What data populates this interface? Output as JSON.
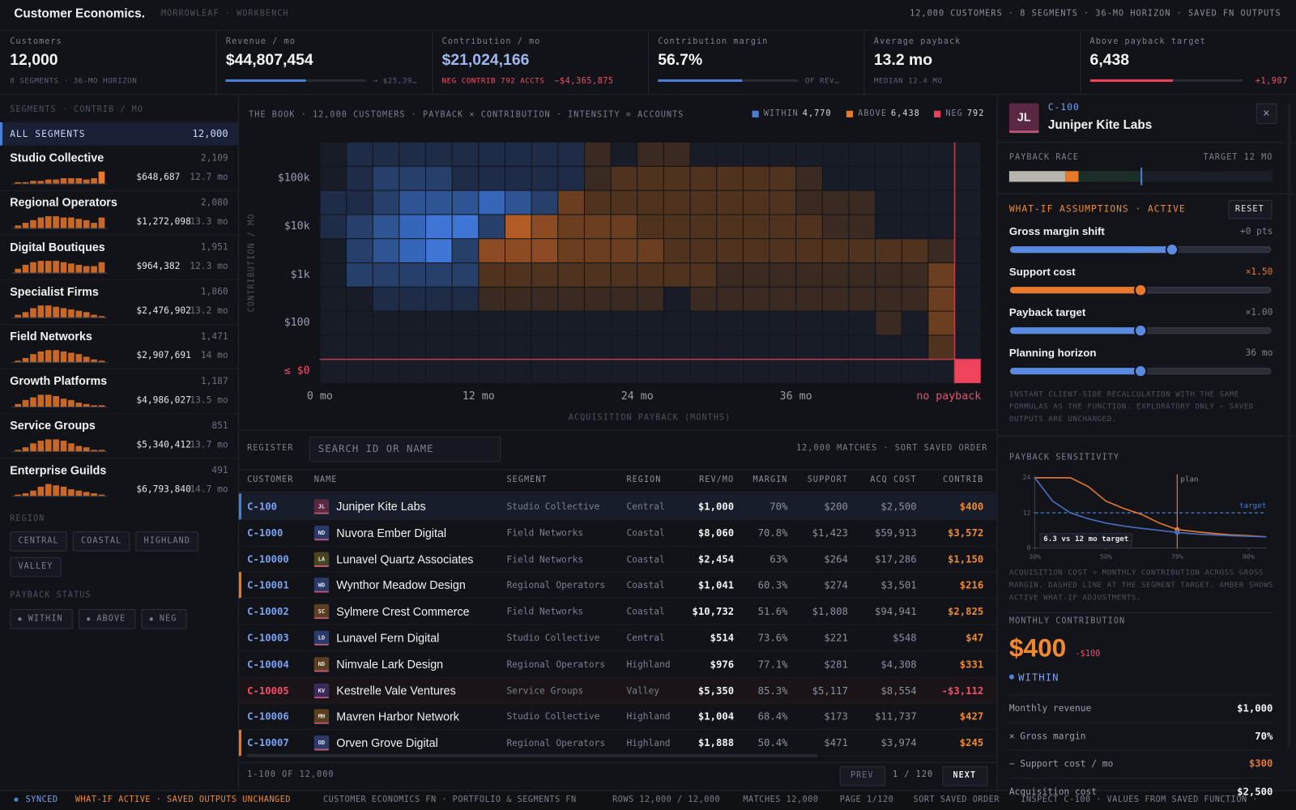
{
  "header": {
    "brand": "Customer Economics.",
    "org": "MORROWLEAF · WORKBENCH",
    "summary": "12,000 CUSTOMERS · 8 SEGMENTS · 36-MO HORIZON · SAVED FN OUTPUTS"
  },
  "kpis": [
    {
      "label": "Customers",
      "value": "12,000",
      "note": "8 SEGMENTS · 36-MO HORIZON"
    },
    {
      "label": "Revenue / mo",
      "value": "$44,807,454",
      "note": "→ $25,39…",
      "bar_color": "#4a7fd4"
    },
    {
      "label": "Contribution / mo",
      "value": "$21,024,166",
      "value_color": "#9db8f2",
      "note": "NEG CONTRIB 792 ACCTS",
      "note2": "−$4,365,875",
      "note_color": "#f0506a"
    },
    {
      "label": "Contribution margin",
      "value": "56.7%",
      "note": "OF REV…",
      "bar_color": "#4a7fd4"
    },
    {
      "label": "Average payback",
      "value": "13.2 mo",
      "note": "MEDIAN 12.4 MO"
    },
    {
      "label": "Above payback target",
      "value": "6,438",
      "note": "+1,907",
      "note_color": "#f0506a",
      "bar_color": "#f0405a"
    }
  ],
  "sidebar": {
    "title": "SEGMENTS · CONTRIB / MO",
    "all": {
      "label": "ALL SEGMENTS",
      "count": "12,000"
    },
    "spark_color": "#e8782a",
    "segments": [
      {
        "name": "Studio Collective",
        "count": "2,109",
        "contrib": "$648,687",
        "payback": "12.7 mo",
        "spark": [
          1,
          1,
          2,
          2,
          3,
          3,
          4,
          4,
          4,
          3,
          4,
          9
        ]
      },
      {
        "name": "Regional Operators",
        "count": "2,080",
        "contrib": "$1,272,098",
        "payback": "13.3 mo",
        "spark": [
          2,
          4,
          6,
          8,
          9,
          9,
          8,
          8,
          7,
          6,
          4,
          8
        ]
      },
      {
        "name": "Digital Boutiques",
        "count": "1,951",
        "contrib": "$964,382",
        "payback": "12.3 mo",
        "spark": [
          3,
          6,
          8,
          9,
          9,
          9,
          8,
          7,
          6,
          5,
          5,
          8
        ]
      },
      {
        "name": "Specialist Firms",
        "count": "1,860",
        "contrib": "$2,476,902",
        "payback": "13.2 mo",
        "spark": [
          2,
          4,
          7,
          9,
          9,
          8,
          7,
          6,
          5,
          4,
          2,
          1
        ]
      },
      {
        "name": "Field Networks",
        "count": "1,471",
        "contrib": "$2,907,691",
        "payback": "14 mo",
        "spark": [
          1,
          3,
          6,
          8,
          9,
          9,
          8,
          7,
          6,
          4,
          2,
          1
        ]
      },
      {
        "name": "Growth Platforms",
        "count": "1,187",
        "contrib": "$4,986,027",
        "payback": "13.5 mo",
        "spark": [
          2,
          5,
          7,
          9,
          9,
          8,
          6,
          5,
          3,
          2,
          1,
          1
        ]
      },
      {
        "name": "Service Groups",
        "count": "851",
        "contrib": "$5,340,412",
        "payback": "13.7 mo",
        "spark": [
          1,
          3,
          6,
          8,
          9,
          9,
          8,
          6,
          4,
          3,
          1,
          1
        ]
      },
      {
        "name": "Enterprise Guilds",
        "count": "491",
        "contrib": "$6,793,840",
        "payback": "14.7 mo",
        "spark": [
          1,
          2,
          4,
          7,
          9,
          8,
          7,
          5,
          4,
          3,
          2,
          1
        ]
      }
    ],
    "region_title": "REGION",
    "regions": [
      "CENTRAL",
      "COASTAL",
      "HIGHLAND",
      "VALLEY"
    ],
    "status_title": "PAYBACK STATUS",
    "statuses": [
      "WITHIN",
      "ABOVE",
      "NEG"
    ]
  },
  "heatmap": {
    "title": "THE BOOK · 12,000 CUSTOMERS · PAYBACK × CONTRIBUTION · INTENSITY = ACCOUNTS",
    "legend": [
      {
        "name": "WITHIN",
        "count": "4,770",
        "color": "#4a7fd4"
      },
      {
        "name": "ABOVE",
        "count": "6,438",
        "color": "#e8782a"
      },
      {
        "name": "NEG",
        "count": "792",
        "color": "#f0405a"
      }
    ],
    "colors": {
      "within": [
        "#1f2c47",
        "#26406b",
        "#2e5494",
        "#3666b8",
        "#3f76d6"
      ],
      "above": [
        "#3a2a22",
        "#50331f",
        "#6c3e20",
        "#8c4b22",
        "#b45c26"
      ],
      "neg": "#f0445c",
      "empty": "#171c27"
    },
    "rows": [
      ".aaaaaaaaaA.AA...........",
      ".abbbaaaaaABBBBBBBA......",
      "aabcccdcbCBBBBBBBBAAA....",
      "abcdeebEDCCCBBBBBBBAA....",
      ".bcdebDDDCCCCBBBBBBBBBBA.",
      ".bbbbbBBBBBBBBBAAAAAAAAC.",
      "..aaaaAAAAAAA.AAAAAAAAAC.",
      ".....................A.C.",
      ".......................B.",
      "........................N"
    ],
    "y_labels": [
      "$100k",
      "$10k",
      "$1k",
      "$100",
      "≤ $0"
    ],
    "x_labels": [
      "0 mo",
      "12 mo",
      "24 mo",
      "36 mo",
      "no payback"
    ],
    "y_axis_label": "CONTRIBUTION / MO",
    "x_axis_label": "ACQUISITION PAYBACK (MONTHS)"
  },
  "register": {
    "label": "REGISTER",
    "search_placeholder": "SEARCH ID OR NAME",
    "matches": "12,000 MATCHES · SORT SAVED ORDER",
    "columns": [
      "CUSTOMER",
      "NAME",
      "SEGMENT",
      "REGION",
      "REV/MO",
      "MARGIN",
      "SUPPORT",
      "ACQ COST",
      "CONTRIB"
    ],
    "rows": [
      {
        "id": "C-100",
        "initials": "JL",
        "avatar_color": "#5a2840",
        "name": "Juniper Kite Labs",
        "segment": "Studio Collective",
        "region": "Central",
        "rev": "$1,000",
        "margin": "70%",
        "support": "$200",
        "acq": "$2,500",
        "contrib": "$400",
        "selected": true
      },
      {
        "id": "C-1000",
        "initials": "ND",
        "avatar_color": "#2a3a6a",
        "name": "Nuvora Ember Digital",
        "segment": "Field Networks",
        "region": "Coastal",
        "rev": "$8,060",
        "margin": "70.8%",
        "support": "$1,423",
        "acq": "$59,913",
        "contrib": "$3,572"
      },
      {
        "id": "C-10000",
        "initials": "LA",
        "avatar_color": "#4a4420",
        "name": "Lunavel Quartz Associates",
        "segment": "Field Networks",
        "region": "Coastal",
        "rev": "$2,454",
        "margin": "63%",
        "support": "$264",
        "acq": "$17,286",
        "contrib": "$1,150"
      },
      {
        "id": "C-10001",
        "initials": "WD",
        "avatar_color": "#2a3a6a",
        "name": "Wynthor Meadow Design",
        "segment": "Regional Operators",
        "region": "Coastal",
        "rev": "$1,041",
        "margin": "60.3%",
        "support": "$274",
        "acq": "$3,501",
        "contrib": "$216",
        "accent": "#e8782a"
      },
      {
        "id": "C-10002",
        "initials": "SC",
        "avatar_color": "#5a4020",
        "name": "Sylmere Crest Commerce",
        "segment": "Field Networks",
        "region": "Coastal",
        "rev": "$10,732",
        "margin": "51.6%",
        "support": "$1,808",
        "acq": "$94,941",
        "contrib": "$2,825"
      },
      {
        "id": "C-10003",
        "initials": "LD",
        "avatar_color": "#2a3a6a",
        "name": "Lunavel Fern Digital",
        "segment": "Studio Collective",
        "region": "Central",
        "rev": "$514",
        "margin": "73.6%",
        "support": "$221",
        "acq": "$548",
        "contrib": "$47"
      },
      {
        "id": "C-10004",
        "initials": "ND",
        "avatar_color": "#5a4020",
        "name": "Nimvale Lark Design",
        "segment": "Regional Operators",
        "region": "Highland",
        "rev": "$976",
        "margin": "77.1%",
        "support": "$281",
        "acq": "$4,308",
        "contrib": "$331"
      },
      {
        "id": "C-10005",
        "initials": "KV",
        "avatar_color": "#3a2a5a",
        "name": "Kestrelle Vale Ventures",
        "segment": "Service Groups",
        "region": "Valley",
        "rev": "$5,350",
        "margin": "85.3%",
        "support": "$5,117",
        "acq": "$8,554",
        "contrib": "-$3,112"
      },
      {
        "id": "C-10006",
        "initials": "MH",
        "avatar_color": "#5a4020",
        "name": "Mavren Harbor Network",
        "segment": "Studio Collective",
        "region": "Highland",
        "rev": "$1,004",
        "margin": "68.4%",
        "support": "$173",
        "acq": "$11,737",
        "contrib": "$427"
      },
      {
        "id": "C-10007",
        "initials": "OD",
        "avatar_color": "#2a3a6a",
        "name": "Orven Grove Digital",
        "segment": "Regional Operators",
        "region": "Highland",
        "rev": "$1,888",
        "margin": "50.4%",
        "support": "$471",
        "acq": "$3,974",
        "contrib": "$245",
        "accent": "#e8782a"
      }
    ],
    "range": "1-100 OF 12,000",
    "prev": "PREV",
    "page": "1 / 120",
    "next": "NEXT"
  },
  "detail": {
    "id": "C-100",
    "initials": "JL",
    "name": "Juniper Kite Labs",
    "close": "×",
    "race_label": "PAYBACK RACE",
    "race_target": "TARGET 12 MO",
    "whatif_title": "WHAT-IF ASSUMPTIONS · ACTIVE",
    "reset": "RESET",
    "sliders": [
      {
        "label": "Gross margin shift",
        "value": "+0 pts",
        "color": "#5a8ae0"
      },
      {
        "label": "Support cost",
        "value": "×1.50",
        "color": "#e8782a"
      },
      {
        "label": "Payback target",
        "value": "×1.00",
        "color": "#5a8ae0"
      },
      {
        "label": "Planning horizon",
        "value": "36 mo",
        "color": "#5a8ae0"
      }
    ],
    "whatif_note": "INSTANT CLIENT-SIDE RECALCULATION WITH THE SAME FORMULAS AS THE FUNCTION. EXPLORATORY ONLY — SAVED OUTPUTS ARE UNCHANGED.",
    "monthly_title": "MONTHLY CONTRIBUTION",
    "monthly_value": "$400",
    "monthly_delta": "-$100",
    "status": "WITHIN",
    "breakdown": [
      {
        "label": "Monthly revenue",
        "value": "$1,000"
      },
      {
        "label": "× Gross margin",
        "value": "70%"
      },
      {
        "label": "− Support cost / mo",
        "value": "$300",
        "value_color": "#e8782a"
      },
      {
        "label": "Acquisition cost",
        "value": "$2,500"
      }
    ]
  },
  "sensitivity": {
    "type": "line",
    "title": "PAYBACK SENSITIVITY",
    "x": [
      30,
      35,
      40,
      45,
      50,
      55,
      60,
      65,
      70,
      75,
      80,
      85,
      90,
      95
    ],
    "series": [
      {
        "color": "#e8782a",
        "values": [
          24,
          24,
          24,
          21,
          16,
          13.5,
          11.5,
          8.5,
          6.3,
          5.6,
          5,
          4.5,
          4.2,
          3.8
        ]
      },
      {
        "color": "#4a6fc0",
        "values": [
          24,
          16,
          12,
          10,
          8.5,
          7.5,
          6.7,
          6,
          5.3,
          4.8,
          4.5,
          4.2,
          4,
          3.8
        ]
      }
    ],
    "xlim": [
      30,
      95
    ],
    "ylim": [
      0,
      24
    ],
    "xticks": [
      {
        "value": 30,
        "label": "30%"
      },
      {
        "value": 50,
        "label": "50%"
      },
      {
        "value": 70,
        "label": "70%"
      },
      {
        "value": 90,
        "label": "90%"
      }
    ],
    "yticks": [
      24,
      12,
      0
    ],
    "target": {
      "label": "target",
      "value": 12,
      "color": "#4a7fd4"
    },
    "plan": {
      "label": "plan",
      "value": 70,
      "color": "#e8782a"
    },
    "annotation": "6.3 vs 12 mo target",
    "caption": "ACQUISITION COST ÷ MONTHLY CONTRIBUTION ACROSS GROSS MARGIN. DASHED LINE AT THE SEGMENT TARGET. AMBER SHOWS ACTIVE WHAT-IF ADJUSTMENTS."
  },
  "status_bar": {
    "synced": "SYNCED",
    "whatif": "WHAT-IF ACTIVE · SAVED OUTPUTS UNCHANGED",
    "items": [
      "CUSTOMER ECONOMICS FN · PORTFOLIO & SEGMENTS FN",
      "ROWS 12,000 / 12,000",
      "MATCHES 12,000",
      "PAGE 1/120",
      "SORT SAVED ORDER",
      "INSPECT C-100 · VALUES FROM SAVED FUNCTION ·"
    ]
  }
}
